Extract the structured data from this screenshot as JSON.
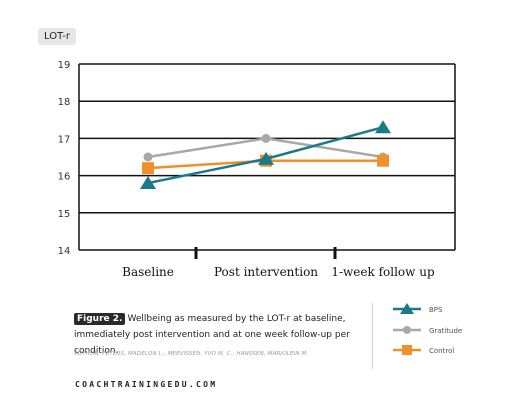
{
  "chart_data": {
    "type": "line",
    "ylabel": "LOT-r",
    "categories": [
      "Baseline",
      "Post intervention",
      "1-week follow up"
    ],
    "ylim": [
      14,
      19
    ],
    "yticks": [
      14,
      15,
      16,
      17,
      18,
      19
    ],
    "grid": true,
    "legend_position": "bottom-right",
    "series": [
      {
        "name": "BPS",
        "values": [
          15.8,
          16.45,
          17.3
        ],
        "color": "#1a7a8a",
        "marker": "triangle"
      },
      {
        "name": "Gratitude",
        "values": [
          16.5,
          17.0,
          16.5
        ],
        "color": "#a8a8a8",
        "marker": "circle"
      },
      {
        "name": "Control",
        "values": [
          16.2,
          16.4,
          16.4
        ],
        "color": "#f0902a",
        "marker": "square"
      }
    ]
  },
  "caption": {
    "label": "Figure 2.",
    "text": "Wellbeing as measured by the LOT-r at baseline, immediately post intervention and at one week follow-up per condition."
  },
  "author": "AUTHOR: PETERS, MADELON L.; MEEVISSEN, YVO M. C.; HANSSEN, MARJOLEIN M.",
  "site": "COACHTRAININGEDU.COM"
}
